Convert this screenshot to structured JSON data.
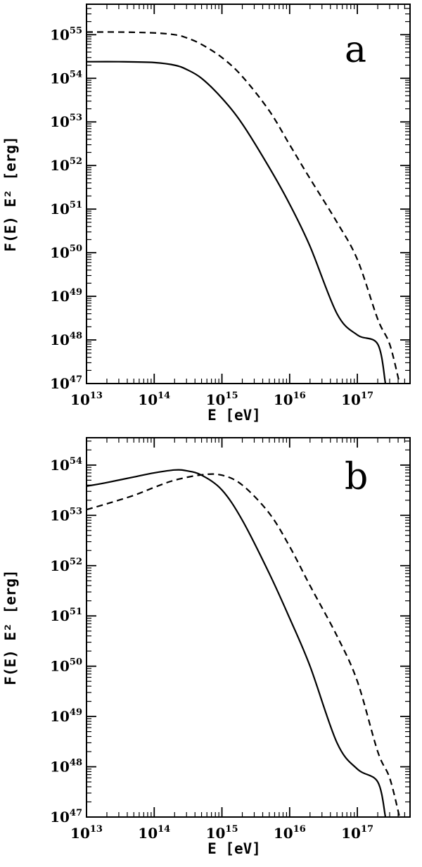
{
  "chart_data": [
    {
      "type": "line",
      "panel_label": "a",
      "xlabel": "E [eV]",
      "ylabel": "F(E) E² [erg]",
      "x_scale": "log",
      "y_scale": "log",
      "xlim": [
        10000000000000.0,
        6e+17
      ],
      "ylim": [
        1e+47,
        5e+55
      ],
      "x_tick_labels": [
        {
          "value": 10000000000000.0,
          "base": "10",
          "exp": "13"
        },
        {
          "value": 100000000000000.0,
          "base": "10",
          "exp": "14"
        },
        {
          "value": 1000000000000000.0,
          "base": "10",
          "exp": "15"
        },
        {
          "value": 1e+16,
          "base": "10",
          "exp": "16"
        },
        {
          "value": 1e+17,
          "base": "10",
          "exp": "17"
        }
      ],
      "y_tick_labels": [
        {
          "value": 1e+47,
          "base": "10",
          "exp": "47"
        },
        {
          "value": 1e+48,
          "base": "10",
          "exp": "48"
        },
        {
          "value": 1e+49,
          "base": "10",
          "exp": "49"
        },
        {
          "value": 1e+50,
          "base": "10",
          "exp": "50"
        },
        {
          "value": 1e+51,
          "base": "10",
          "exp": "51"
        },
        {
          "value": 1e+52,
          "base": "10",
          "exp": "52"
        },
        {
          "value": 1e+53,
          "base": "10",
          "exp": "53"
        },
        {
          "value": 1e+54,
          "base": "10",
          "exp": "54"
        },
        {
          "value": 1e+55,
          "base": "10",
          "exp": "55"
        }
      ],
      "series": [
        {
          "style": "solid",
          "x": [
            10000000000000.0,
            30000000000000.0,
            100000000000000.0,
            200000000000000.0,
            300000000000000.0,
            500000000000000.0,
            1000000000000000.0,
            2000000000000000.0,
            5000000000000000.0,
            1e+16,
            2e+16,
            5e+16,
            1e+17,
            2e+17,
            2.6e+17
          ],
          "y": [
            2.4e+54,
            2.4e+54,
            2.3e+54,
            2e+54,
            1.6e+54,
            1e+54,
            3.5e+53,
            9e+52,
            9e+51,
            1.3e+51,
            1.4e+50,
            4e+48,
            1.3e+48,
            8e+47,
            1e+47
          ]
        },
        {
          "style": "dashed",
          "x": [
            10000000000000.0,
            30000000000000.0,
            100000000000000.0,
            200000000000000.0,
            300000000000000.0,
            500000000000000.0,
            1000000000000000.0,
            2000000000000000.0,
            5000000000000000.0,
            1e+16,
            2e+16,
            5e+16,
            1e+17,
            2e+17,
            3e+17,
            4.2e+17
          ],
          "y": [
            1.15e+55,
            1.15e+55,
            1.1e+55,
            1e+55,
            8.5e+54,
            6e+54,
            3e+54,
            1.1e+54,
            1.8e+53,
            3e+52,
            5e+51,
            5e+50,
            7e+49,
            3e+48,
            8e+47,
            1e+47
          ]
        }
      ]
    },
    {
      "type": "line",
      "panel_label": "b",
      "xlabel": "E [eV]",
      "ylabel": "F(E) E² [erg]",
      "x_scale": "log",
      "y_scale": "log",
      "xlim": [
        10000000000000.0,
        6e+17
      ],
      "ylim": [
        1e+47,
        3.5e+54
      ],
      "x_tick_labels": [
        {
          "value": 10000000000000.0,
          "base": "10",
          "exp": "13"
        },
        {
          "value": 100000000000000.0,
          "base": "10",
          "exp": "14"
        },
        {
          "value": 1000000000000000.0,
          "base": "10",
          "exp": "15"
        },
        {
          "value": 1e+16,
          "base": "10",
          "exp": "16"
        },
        {
          "value": 1e+17,
          "base": "10",
          "exp": "17"
        }
      ],
      "y_tick_labels": [
        {
          "value": 1e+47,
          "base": "10",
          "exp": "47"
        },
        {
          "value": 1e+48,
          "base": "10",
          "exp": "48"
        },
        {
          "value": 1e+49,
          "base": "10",
          "exp": "49"
        },
        {
          "value": 1e+50,
          "base": "10",
          "exp": "50"
        },
        {
          "value": 1e+51,
          "base": "10",
          "exp": "51"
        },
        {
          "value": 1e+52,
          "base": "10",
          "exp": "52"
        },
        {
          "value": 1e+53,
          "base": "10",
          "exp": "53"
        },
        {
          "value": 1e+54,
          "base": "10",
          "exp": "54"
        }
      ],
      "series": [
        {
          "style": "solid",
          "x": [
            10000000000000.0,
            20000000000000.0,
            50000000000000.0,
            100000000000000.0,
            200000000000000.0,
            300000000000000.0,
            500000000000000.0,
            1000000000000000.0,
            2000000000000000.0,
            5000000000000000.0,
            1e+16,
            2e+16,
            5e+16,
            1e+17,
            2e+17,
            2.6e+17
          ],
          "y": [
            3.8e+53,
            4.5e+53,
            5.8e+53,
            7e+53,
            8e+53,
            7.7e+53,
            6.3e+53,
            3.2e+53,
            8e+52,
            7e+51,
            9e+50,
            1e+50,
            3e+48,
            9e+47,
            5e+47,
            1e+47
          ]
        },
        {
          "style": "dashed",
          "x": [
            10000000000000.0,
            20000000000000.0,
            50000000000000.0,
            100000000000000.0,
            200000000000000.0,
            500000000000000.0,
            1000000000000000.0,
            2000000000000000.0,
            5000000000000000.0,
            1e+16,
            2e+16,
            5e+16,
            1e+17,
            2e+17,
            3e+17,
            4.2e+17
          ],
          "y": [
            1.3e+53,
            1.7e+53,
            2.5e+53,
            3.6e+53,
            5e+53,
            6.4e+53,
            6.3e+53,
            4e+53,
            1.1e+53,
            2.4e+52,
            4e+51,
            4e+50,
            5e+49,
            2e+48,
            6e+47,
            1e+47
          ]
        }
      ]
    }
  ]
}
